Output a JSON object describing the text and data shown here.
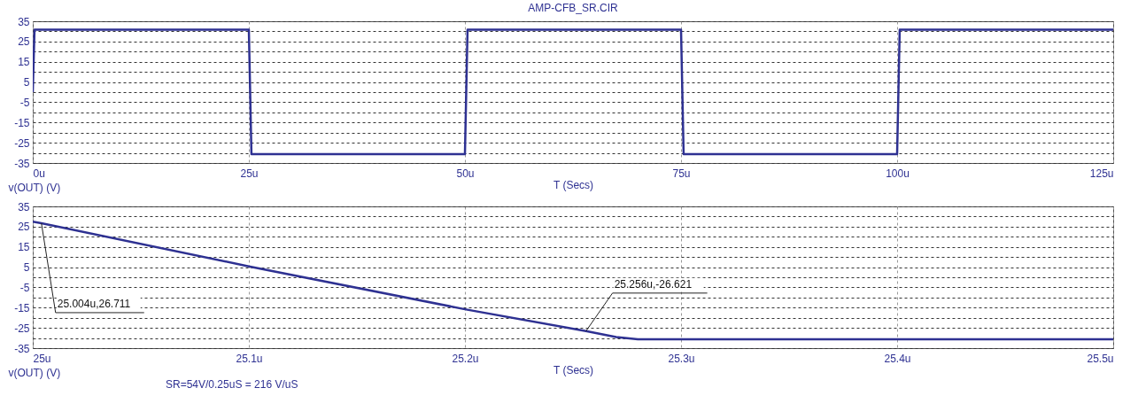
{
  "chart_data": [
    {
      "type": "line",
      "title": "AMP-CFB_SR.CIR",
      "xlabel": "T (Secs)",
      "ylabel": "v(OUT) (V)",
      "xlim": [
        0,
        125
      ],
      "ylim": [
        -35,
        35
      ],
      "xticks": [
        {
          "value": 0,
          "label": "0u"
        },
        {
          "value": 25,
          "label": "25u"
        },
        {
          "value": 50,
          "label": "50u"
        },
        {
          "value": 75,
          "label": "75u"
        },
        {
          "value": 100,
          "label": "100u"
        },
        {
          "value": 125,
          "label": "125u"
        }
      ],
      "yticks": [
        35,
        {
          "value": 30,
          "label": null
        },
        25,
        {
          "value": 20,
          "label": null
        },
        15,
        {
          "value": 10,
          "label": null
        },
        5,
        {
          "value": 0,
          "label": null
        },
        -5,
        {
          "value": -10,
          "label": null
        },
        -15,
        {
          "value": -20,
          "label": null
        },
        -25,
        {
          "value": -30,
          "label": null
        },
        -35
      ],
      "grid": true,
      "marker": "none",
      "line_style": "solid",
      "series": [
        {
          "color": "#2e3192",
          "x": [
            0,
            0.2,
            25,
            25.3,
            50,
            50.3,
            75,
            75.3,
            100,
            100.3,
            125
          ],
          "values": [
            0,
            30.8,
            30.8,
            -30.6,
            -30.6,
            30.8,
            30.8,
            -30.6,
            -30.6,
            30.8,
            30.8
          ]
        }
      ]
    },
    {
      "type": "line",
      "xlabel": "T (Secs)",
      "ylabel": "v(OUT) (V)",
      "xlim": [
        25,
        25.5
      ],
      "ylim": [
        -35,
        35
      ],
      "xticks": [
        {
          "value": 25,
          "label": "25u"
        },
        {
          "value": 25.1,
          "label": "25.1u"
        },
        {
          "value": 25.2,
          "label": "25.2u"
        },
        {
          "value": 25.3,
          "label": "25.3u"
        },
        {
          "value": 25.4,
          "label": "25.4u"
        },
        {
          "value": 25.5,
          "label": "25.5u"
        }
      ],
      "yticks": [
        35,
        {
          "value": 30,
          "label": null
        },
        25,
        {
          "value": 20,
          "label": null
        },
        15,
        {
          "value": 10,
          "label": null
        },
        5,
        {
          "value": 0,
          "label": null
        },
        -5,
        {
          "value": -10,
          "label": null
        },
        -15,
        {
          "value": -20,
          "label": null
        },
        -25,
        {
          "value": -30,
          "label": null
        },
        -35
      ],
      "grid": true,
      "marker": "none",
      "line_style": "solid",
      "annotations": [
        {
          "text": "25.004u,26.711",
          "x": 25.004,
          "y": 26.711
        },
        {
          "text": "25.256u,-26.621",
          "x": 25.256,
          "y": -26.621
        },
        "SR=54V/0.25uS = 216 V/uS"
      ],
      "series": [
        {
          "color": "#2e3192",
          "x": [
            25,
            25.004,
            25.1,
            25.2,
            25.256,
            25.27,
            25.28,
            25.5
          ],
          "values": [
            27.5,
            26.7,
            5.4,
            -15.8,
            -26.6,
            -29.5,
            -30.6,
            -30.6
          ]
        }
      ]
    }
  ]
}
